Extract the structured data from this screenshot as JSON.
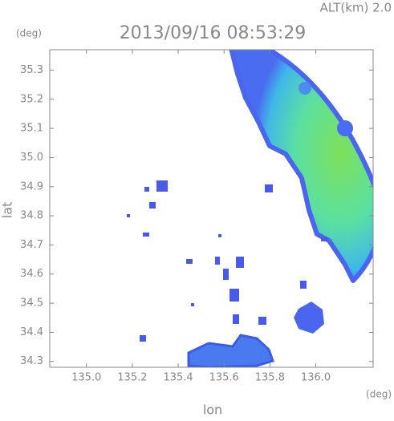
{
  "chart_data": {
    "type": "radar-map",
    "title": "2013/09/16 08:53:29",
    "altitude_label": "ALT(km) 2.0",
    "y_unit": "(deg)",
    "x_unit": "(deg)",
    "x_label": "lon",
    "y_label": "lat",
    "xlim": [
      134.84,
      136.25
    ],
    "ylim": [
      34.28,
      35.37
    ],
    "xticks": [
      {
        "value": 135,
        "label": "135.0"
      },
      135.2,
      135.4,
      135.6,
      135.8,
      {
        "value": 136,
        "label": "136.0"
      }
    ],
    "yticks": [
      34.3,
      34.4,
      34.5,
      34.6,
      34.7,
      34.8,
      34.9,
      {
        "value": 35,
        "label": "35.0"
      },
      35.1,
      35.2,
      35.3
    ]
  }
}
